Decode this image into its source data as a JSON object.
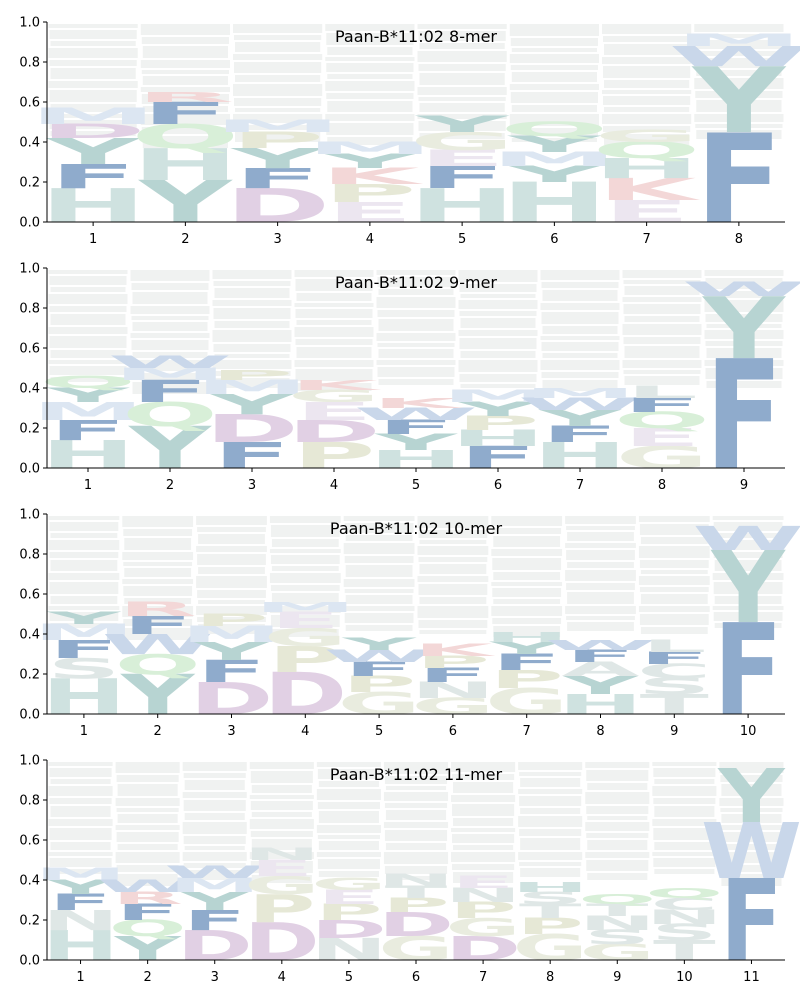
{
  "colors": {
    "H": "#cfe2e0",
    "Y": "#b7d4d2",
    "F": "#8fabcc",
    "W": "#c9d7ea",
    "M": "#dce6f2",
    "Q": "#d8efd8",
    "D": "#e1d0e4",
    "K": "#f3d7d7",
    "R": "#f3d7d7",
    "P": "#e6e8d6",
    "E": "#ece6f0",
    "G": "#e9ecdf",
    "faint": "#ecefee"
  },
  "chart_data": [
    {
      "type": "sequence-logo",
      "title": "Paan-B*11:02 8-mer",
      "xlabel": "",
      "ylabel": "",
      "ylim": [
        0,
        1
      ],
      "yticks": [
        "0.0",
        "0.2",
        "0.4",
        "0.6",
        "0.8",
        "1.0"
      ],
      "positions": [
        "1",
        "2",
        "3",
        "4",
        "5",
        "6",
        "7",
        "8"
      ],
      "letters": [
        [
          {
            "aa": "H",
            "h": 0.17
          },
          {
            "aa": "F",
            "h": 0.12
          },
          {
            "aa": "Y",
            "h": 0.13
          },
          {
            "aa": "D",
            "h": 0.07
          },
          {
            "aa": "M",
            "h": 0.08
          }
        ],
        [
          {
            "aa": "Y",
            "h": 0.21
          },
          {
            "aa": "H",
            "h": 0.16
          },
          {
            "aa": "Q",
            "h": 0.12
          },
          {
            "aa": "F",
            "h": 0.11
          },
          {
            "aa": "R",
            "h": 0.05
          }
        ],
        [
          {
            "aa": "D",
            "h": 0.17
          },
          {
            "aa": "F",
            "h": 0.1
          },
          {
            "aa": "Y",
            "h": 0.1
          },
          {
            "aa": "P",
            "h": 0.08
          },
          {
            "aa": "M",
            "h": 0.06
          }
        ],
        [
          {
            "aa": "E",
            "h": 0.1
          },
          {
            "aa": "P",
            "h": 0.09
          },
          {
            "aa": "K",
            "h": 0.08
          },
          {
            "aa": "Y",
            "h": 0.07
          },
          {
            "aa": "M",
            "h": 0.06
          }
        ],
        [
          {
            "aa": "H",
            "h": 0.17
          },
          {
            "aa": "F",
            "h": 0.11
          },
          {
            "aa": "E",
            "h": 0.08
          },
          {
            "aa": "G",
            "h": 0.09
          },
          {
            "aa": "Y",
            "h": 0.08
          }
        ],
        [
          {
            "aa": "H",
            "h": 0.2
          },
          {
            "aa": "Y",
            "h": 0.08
          },
          {
            "aa": "M",
            "h": 0.07
          },
          {
            "aa": "Y",
            "h": 0.08
          },
          {
            "aa": "Q",
            "h": 0.07
          }
        ],
        [
          {
            "aa": "E",
            "h": 0.11
          },
          {
            "aa": "K",
            "h": 0.11
          },
          {
            "aa": "H",
            "h": 0.1
          },
          {
            "aa": "Q",
            "h": 0.08
          },
          {
            "aa": "G",
            "h": 0.06
          }
        ],
        [
          {
            "aa": "F",
            "h": 0.45
          },
          {
            "aa": "Y",
            "h": 0.33
          },
          {
            "aa": "W",
            "h": 0.1
          },
          {
            "aa": "M",
            "h": 0.06
          }
        ]
      ]
    },
    {
      "type": "sequence-logo",
      "title": "Paan-B*11:02 9-mer",
      "xlabel": "",
      "ylabel": "",
      "ylim": [
        0,
        1
      ],
      "yticks": [
        "0.0",
        "0.2",
        "0.4",
        "0.6",
        "0.8",
        "1.0"
      ],
      "positions": [
        "1",
        "2",
        "3",
        "4",
        "5",
        "6",
        "7",
        "8",
        "9"
      ],
      "letters": [
        [
          {
            "aa": "H",
            "h": 0.14
          },
          {
            "aa": "F",
            "h": 0.1
          },
          {
            "aa": "M",
            "h": 0.09
          },
          {
            "aa": "Y",
            "h": 0.07
          },
          {
            "aa": "Q",
            "h": 0.06
          }
        ],
        [
          {
            "aa": "Y",
            "h": 0.21
          },
          {
            "aa": "Q",
            "h": 0.12
          },
          {
            "aa": "F",
            "h": 0.11
          },
          {
            "aa": "M",
            "h": 0.06
          },
          {
            "aa": "W",
            "h": 0.06
          }
        ],
        [
          {
            "aa": "F",
            "h": 0.13
          },
          {
            "aa": "D",
            "h": 0.14
          },
          {
            "aa": "Y",
            "h": 0.1
          },
          {
            "aa": "M",
            "h": 0.07
          },
          {
            "aa": "P",
            "h": 0.05
          }
        ],
        [
          {
            "aa": "P",
            "h": 0.13
          },
          {
            "aa": "D",
            "h": 0.11
          },
          {
            "aa": "E",
            "h": 0.09
          },
          {
            "aa": "G",
            "h": 0.06
          },
          {
            "aa": "K",
            "h": 0.05
          }
        ],
        [
          {
            "aa": "H",
            "h": 0.09
          },
          {
            "aa": "Y",
            "h": 0.08
          },
          {
            "aa": "F",
            "h": 0.07
          },
          {
            "aa": "W",
            "h": 0.06
          },
          {
            "aa": "K",
            "h": 0.05
          }
        ],
        [
          {
            "aa": "F",
            "h": 0.11
          },
          {
            "aa": "H",
            "h": 0.08
          },
          {
            "aa": "P",
            "h": 0.07
          },
          {
            "aa": "Y",
            "h": 0.07
          },
          {
            "aa": "M",
            "h": 0.06
          }
        ],
        [
          {
            "aa": "H",
            "h": 0.13
          },
          {
            "aa": "F",
            "h": 0.08
          },
          {
            "aa": "Y",
            "h": 0.08
          },
          {
            "aa": "W",
            "h": 0.06
          },
          {
            "aa": "M",
            "h": 0.05
          }
        ],
        [
          {
            "aa": "G",
            "h": 0.11
          },
          {
            "aa": "E",
            "h": 0.09
          },
          {
            "aa": "Q",
            "h": 0.08
          },
          {
            "aa": "F",
            "h": 0.07
          },
          {
            "aa": "L",
            "h": 0.06
          }
        ],
        [
          {
            "aa": "F",
            "h": 0.55
          },
          {
            "aa": "Y",
            "h": 0.31
          },
          {
            "aa": "W",
            "h": 0.07
          }
        ]
      ]
    },
    {
      "type": "sequence-logo",
      "title": "Paan-B*11:02 10-mer",
      "xlabel": "",
      "ylabel": "",
      "ylim": [
        0,
        1
      ],
      "yticks": [
        "0.0",
        "0.2",
        "0.4",
        "0.6",
        "0.8",
        "1.0"
      ],
      "positions": [
        "1",
        "2",
        "3",
        "4",
        "5",
        "6",
        "7",
        "8",
        "9",
        "10"
      ],
      "letters": [
        [
          {
            "aa": "H",
            "h": 0.18
          },
          {
            "aa": "S",
            "h": 0.1
          },
          {
            "aa": "F",
            "h": 0.09
          },
          {
            "aa": "M",
            "h": 0.08
          },
          {
            "aa": "Y",
            "h": 0.06
          }
        ],
        [
          {
            "aa": "Y",
            "h": 0.2
          },
          {
            "aa": "Q",
            "h": 0.1
          },
          {
            "aa": "W",
            "h": 0.1
          },
          {
            "aa": "F",
            "h": 0.09
          },
          {
            "aa": "R",
            "h": 0.07
          }
        ],
        [
          {
            "aa": "D",
            "h": 0.16
          },
          {
            "aa": "F",
            "h": 0.11
          },
          {
            "aa": "Y",
            "h": 0.09
          },
          {
            "aa": "M",
            "h": 0.08
          },
          {
            "aa": "P",
            "h": 0.06
          }
        ],
        [
          {
            "aa": "D",
            "h": 0.21
          },
          {
            "aa": "P",
            "h": 0.13
          },
          {
            "aa": "G",
            "h": 0.09
          },
          {
            "aa": "E",
            "h": 0.08
          },
          {
            "aa": "M",
            "h": 0.05
          }
        ],
        [
          {
            "aa": "G",
            "h": 0.11
          },
          {
            "aa": "P",
            "h": 0.08
          },
          {
            "aa": "F",
            "h": 0.07
          },
          {
            "aa": "W",
            "h": 0.06
          },
          {
            "aa": "Y",
            "h": 0.06
          }
        ],
        [
          {
            "aa": "G",
            "h": 0.08
          },
          {
            "aa": "N",
            "h": 0.08
          },
          {
            "aa": "F",
            "h": 0.07
          },
          {
            "aa": "P",
            "h": 0.06
          },
          {
            "aa": "K",
            "h": 0.06
          }
        ],
        [
          {
            "aa": "G",
            "h": 0.13
          },
          {
            "aa": "P",
            "h": 0.09
          },
          {
            "aa": "F",
            "h": 0.08
          },
          {
            "aa": "Y",
            "h": 0.06
          },
          {
            "aa": "H",
            "h": 0.05
          }
        ],
        [
          {
            "aa": "H",
            "h": 0.1
          },
          {
            "aa": "Y",
            "h": 0.09
          },
          {
            "aa": "A",
            "h": 0.07
          },
          {
            "aa": "F",
            "h": 0.06
          },
          {
            "aa": "W",
            "h": 0.05
          }
        ],
        [
          {
            "aa": "T",
            "h": 0.1
          },
          {
            "aa": "S",
            "h": 0.08
          },
          {
            "aa": "C",
            "h": 0.07
          },
          {
            "aa": "F",
            "h": 0.06
          },
          {
            "aa": "L",
            "h": 0.06
          }
        ],
        [
          {
            "aa": "F",
            "h": 0.46
          },
          {
            "aa": "Y",
            "h": 0.36
          },
          {
            "aa": "W",
            "h": 0.12
          }
        ]
      ]
    },
    {
      "type": "sequence-logo",
      "title": "Paan-B*11:02 11-mer",
      "xlabel": "",
      "ylabel": "",
      "ylim": [
        0,
        1
      ],
      "yticks": [
        "0.0",
        "0.2",
        "0.4",
        "0.6",
        "0.8",
        "1.0"
      ],
      "positions": [
        "1",
        "2",
        "3",
        "4",
        "5",
        "6",
        "7",
        "8",
        "9",
        "10",
        "11"
      ],
      "letters": [
        [
          {
            "aa": "H",
            "h": 0.15
          },
          {
            "aa": "N",
            "h": 0.1
          },
          {
            "aa": "F",
            "h": 0.08
          },
          {
            "aa": "Y",
            "h": 0.07
          },
          {
            "aa": "M",
            "h": 0.06
          }
        ],
        [
          {
            "aa": "Y",
            "h": 0.12
          },
          {
            "aa": "Q",
            "h": 0.08
          },
          {
            "aa": "F",
            "h": 0.08
          },
          {
            "aa": "R",
            "h": 0.06
          },
          {
            "aa": "W",
            "h": 0.06
          }
        ],
        [
          {
            "aa": "D",
            "h": 0.15
          },
          {
            "aa": "F",
            "h": 0.1
          },
          {
            "aa": "Y",
            "h": 0.09
          },
          {
            "aa": "M",
            "h": 0.07
          },
          {
            "aa": "W",
            "h": 0.06
          }
        ],
        [
          {
            "aa": "D",
            "h": 0.19
          },
          {
            "aa": "P",
            "h": 0.14
          },
          {
            "aa": "G",
            "h": 0.09
          },
          {
            "aa": "E",
            "h": 0.08
          },
          {
            "aa": "N",
            "h": 0.06
          }
        ],
        [
          {
            "aa": "N",
            "h": 0.11
          },
          {
            "aa": "D",
            "h": 0.09
          },
          {
            "aa": "P",
            "h": 0.08
          },
          {
            "aa": "E",
            "h": 0.07
          },
          {
            "aa": "G",
            "h": 0.06
          }
        ],
        [
          {
            "aa": "G",
            "h": 0.12
          },
          {
            "aa": "D",
            "h": 0.12
          },
          {
            "aa": "P",
            "h": 0.07
          },
          {
            "aa": "T",
            "h": 0.06
          },
          {
            "aa": "N",
            "h": 0.06
          }
        ],
        [
          {
            "aa": "D",
            "h": 0.12
          },
          {
            "aa": "G",
            "h": 0.09
          },
          {
            "aa": "P",
            "h": 0.08
          },
          {
            "aa": "N",
            "h": 0.07
          },
          {
            "aa": "E",
            "h": 0.06
          }
        ],
        [
          {
            "aa": "G",
            "h": 0.13
          },
          {
            "aa": "P",
            "h": 0.08
          },
          {
            "aa": "T",
            "h": 0.07
          },
          {
            "aa": "S",
            "h": 0.06
          },
          {
            "aa": "H",
            "h": 0.05
          }
        ],
        [
          {
            "aa": "G",
            "h": 0.08
          },
          {
            "aa": "S",
            "h": 0.07
          },
          {
            "aa": "N",
            "h": 0.07
          },
          {
            "aa": "T",
            "h": 0.06
          },
          {
            "aa": "Q",
            "h": 0.05
          }
        ],
        [
          {
            "aa": "T",
            "h": 0.1
          },
          {
            "aa": "S",
            "h": 0.08
          },
          {
            "aa": "N",
            "h": 0.07
          },
          {
            "aa": "C",
            "h": 0.06
          },
          {
            "aa": "Q",
            "h": 0.05
          }
        ],
        [
          {
            "aa": "F",
            "h": 0.41
          },
          {
            "aa": "W",
            "h": 0.28
          },
          {
            "aa": "Y",
            "h": 0.27
          }
        ]
      ]
    }
  ]
}
